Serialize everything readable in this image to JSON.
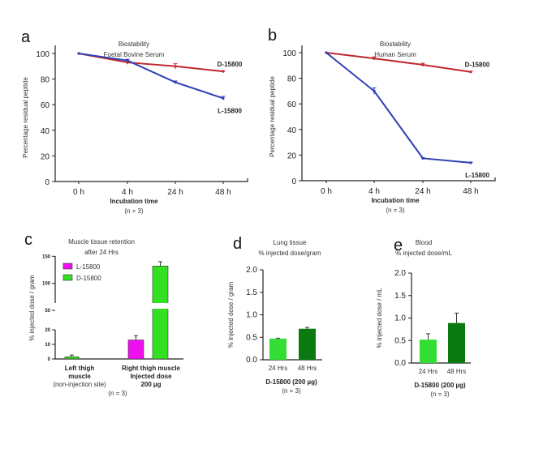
{
  "chart_data": [
    {
      "panel": "a",
      "type": "line",
      "title": [
        "Biostability",
        "Foetal Bovine Serum"
      ],
      "xlabel": "Incubation time",
      "note": "(n = 3)",
      "ylabel": "Percentage residual peptide",
      "categories": [
        "0 h",
        "4 h",
        "24 h",
        "48 h"
      ],
      "yticks": [
        0,
        20,
        40,
        60,
        80,
        100
      ],
      "ylim": [
        0,
        100
      ],
      "series": [
        {
          "name": "D-15800",
          "color": "#c0282d",
          "values": [
            100,
            93,
            90,
            86
          ],
          "errors": [
            0,
            1.5,
            2,
            0.5
          ]
        },
        {
          "name": "L-15800",
          "color": "#2f3fb5",
          "values": [
            100,
            94.5,
            77.5,
            65
          ],
          "errors": [
            0,
            1,
            1,
            1.5
          ]
        }
      ]
    },
    {
      "panel": "b",
      "type": "line",
      "title": [
        "Biostability",
        "Human Serum"
      ],
      "xlabel": "Incubation time",
      "note": "(n = 3)",
      "ylabel": "Percentage residual peptide",
      "categories": [
        "0 h",
        "4 h",
        "24 h",
        "48 h"
      ],
      "yticks": [
        0,
        20,
        40,
        60,
        80,
        100
      ],
      "ylim": [
        0,
        100
      ],
      "series": [
        {
          "name": "D-15800",
          "color": "#c0282d",
          "values": [
            100,
            95.5,
            90.5,
            85
          ],
          "errors": [
            0,
            1.2,
            1.2,
            0.5
          ]
        },
        {
          "name": "L-15800",
          "color": "#2f3fb5",
          "values": [
            100,
            70,
            17.5,
            14
          ],
          "errors": [
            0,
            2.5,
            0.5,
            0.5
          ]
        }
      ]
    },
    {
      "panel": "c",
      "type": "bar",
      "title": [
        "Muscle tissue retention",
        "after 24 Hrs"
      ],
      "ylabel": "% injected dose / gram",
      "note": "(n = 3)",
      "categories": [
        [
          "Left thigh",
          "muscle",
          "(non-injection site)"
        ],
        [
          "Right thigh muscle",
          "Injected dose",
          "200 µg"
        ]
      ],
      "yticks_lower": [
        0,
        10,
        20
      ],
      "yticks_upper": [
        50,
        100,
        150
      ],
      "axis_break": [
        20,
        35
      ],
      "series": [
        {
          "name": "L-15800",
          "color": "#ee10ee",
          "values": [
            0,
            13
          ],
          "errors": [
            0,
            3
          ]
        },
        {
          "name": "D-15800",
          "color": "#33e022",
          "values": [
            1.5,
            132
          ],
          "errors": [
            1.2,
            8
          ]
        }
      ],
      "legend": "top-left"
    },
    {
      "panel": "d",
      "type": "bar",
      "title": [
        "Lung tissue",
        "% injected dose/gram"
      ],
      "ylabel": "% injected dose / gram",
      "xlabel": "D-15800 (200 µg)",
      "note": "(n = 3)",
      "categories": [
        "24 Hrs",
        "48 Hrs"
      ],
      "values": [
        0.47,
        0.69
      ],
      "errors": [
        0.01,
        0.03
      ],
      "colors": [
        "#33dd33",
        "#0a7a10"
      ],
      "yticks": [
        "0.0",
        "0.5",
        "1.0",
        "1.5",
        "2.0"
      ],
      "ylim": [
        0,
        2
      ]
    },
    {
      "panel": "e",
      "type": "bar",
      "title": [
        "Blood",
        "% injected dose/mL"
      ],
      "ylabel": "% injected dose / mL",
      "xlabel": "D-15800 (200 µg)",
      "note": "(n = 3)",
      "categories": [
        "24 Hrs",
        "48 Hrs"
      ],
      "values": [
        0.52,
        0.89
      ],
      "errors": [
        0.13,
        0.22
      ],
      "colors": [
        "#33dd33",
        "#0a7a10"
      ],
      "yticks": [
        "0.0",
        "0.5",
        "1.0",
        "1.5",
        "2.0"
      ],
      "ylim": [
        0,
        2
      ]
    }
  ]
}
